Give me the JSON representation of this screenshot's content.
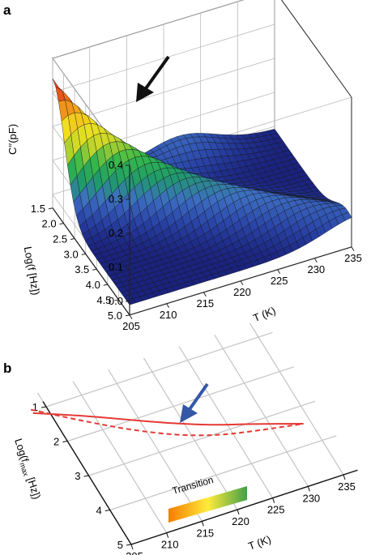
{
  "panels": [
    {
      "label": "a",
      "chart_data": {
        "type": "surface3d",
        "z_label": "C′′(pF)",
        "y_label": "Log(f [Hz])",
        "x_label": "T (K)",
        "x_ticks": [
          "205",
          "210",
          "215",
          "220",
          "225",
          "230",
          "235"
        ],
        "y_ticks": [
          "1.5",
          "2.0",
          "2.5",
          "3.0",
          "3.5",
          "4.0",
          "4.5",
          "5.0"
        ],
        "z_ticks": [
          "0.0",
          "0.1",
          "0.2",
          "0.3",
          "0.4"
        ],
        "x_range": [
          205,
          235
        ],
        "y_range": [
          1.5,
          5.0
        ],
        "z_range": [
          0.0,
          0.4
        ],
        "colormap": [
          "#1a237e",
          "#2a45a8",
          "#3d6ec2",
          "#1f9a6a",
          "#35b84a",
          "#c8d62a",
          "#f2e21e",
          "#f2a21a",
          "#e8521a",
          "#d81e1e"
        ],
        "peak": {
          "T": 205,
          "logf": 1.5,
          "C": 0.35
        },
        "ridge": "peak moves from low T / low Log f toward high T / high Log f",
        "annotation": "arrow pointing to the high-temperature edge of the peak ridge"
      }
    },
    {
      "label": "b",
      "chart_data": {
        "type": "line",
        "y_label": "Log(f",
        "y_label_sub": "max",
        "y_label_end": " [Hz])",
        "x_label": "T (K)",
        "x_ticks": [
          "205",
          "210",
          "215",
          "220",
          "225",
          "230",
          "235"
        ],
        "y_ticks": [
          "1",
          "2",
          "3",
          "4",
          "5"
        ],
        "x_range": [
          205,
          235
        ],
        "y_range": [
          1,
          5
        ],
        "series": [
          {
            "style": "solid",
            "color": "#e53935",
            "points": [
              [
                203,
                1.05
              ],
              [
                208,
                1.45
              ],
              [
                213,
                1.9
              ],
              [
                218,
                2.35
              ],
              [
                223,
                2.75
              ],
              [
                228,
                3.05
              ],
              [
                234,
                3.45
              ]
            ]
          },
          {
            "style": "dashed",
            "color": "#e53935",
            "points": [
              [
                203,
                0.95
              ],
              [
                208,
                1.6
              ],
              [
                213,
                2.2
              ],
              [
                218,
                2.7
              ],
              [
                223,
                3.05
              ],
              [
                228,
                3.25
              ],
              [
                234,
                3.45
              ]
            ]
          }
        ],
        "legend": {
          "label": "Transition",
          "colors": [
            "#f57c00",
            "#ffeb3b",
            "#43a047"
          ]
        },
        "annotation": "blue arrow pointing to the solid curve"
      }
    }
  ]
}
